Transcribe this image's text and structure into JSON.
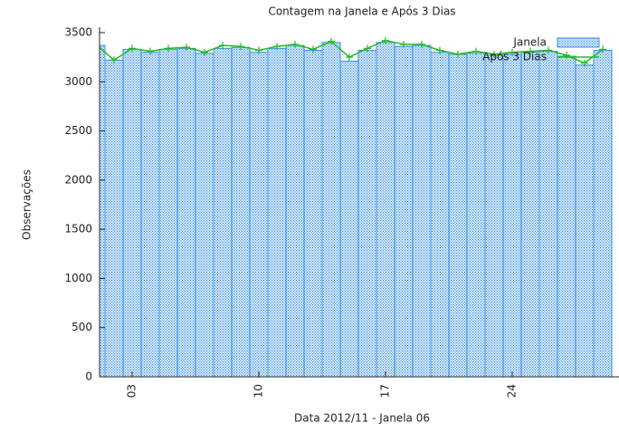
{
  "chart_data": {
    "type": "bar_line",
    "title": "Contagem na Janela e Após 3 Dias",
    "x_label": "Data 2012/11 - Janela 06",
    "y_label": "Observações",
    "x": [
      1,
      2,
      3,
      4,
      5,
      6,
      7,
      8,
      9,
      10,
      11,
      12,
      13,
      14,
      15,
      16,
      17,
      18,
      19,
      20,
      21,
      22,
      23,
      24,
      25,
      26,
      27,
      28,
      29
    ],
    "series": [
      {
        "name": "Janela",
        "color": "#3a8ee0",
        "kind": "bar",
        "values": [
          3370,
          3220,
          3330,
          3300,
          3330,
          3340,
          3290,
          3340,
          3350,
          3300,
          3340,
          3370,
          3320,
          3400,
          3210,
          3320,
          3400,
          3360,
          3370,
          3300,
          3280,
          3290,
          3270,
          3280,
          3300,
          3310,
          3260,
          3170,
          3320
        ]
      },
      {
        "name": "Após 3 Dias",
        "color": "#22bb22",
        "kind": "line",
        "values": [
          3380,
          3220,
          3340,
          3310,
          3340,
          3350,
          3300,
          3370,
          3360,
          3320,
          3360,
          3380,
          3330,
          3410,
          3250,
          3340,
          3420,
          3380,
          3380,
          3320,
          3280,
          3310,
          3280,
          3300,
          3310,
          3320,
          3270,
          3190,
          3330
        ]
      }
    ],
    "xlim": [
      1.2,
      29.9
    ],
    "xticks": [
      {
        "value": 3,
        "label": "03"
      },
      10,
      17,
      24
    ],
    "ylim": [
      0,
      3500
    ],
    "yticks": [
      0,
      500,
      1000,
      1500,
      2000,
      2500,
      3000,
      3500
    ],
    "legend": "top-right"
  }
}
